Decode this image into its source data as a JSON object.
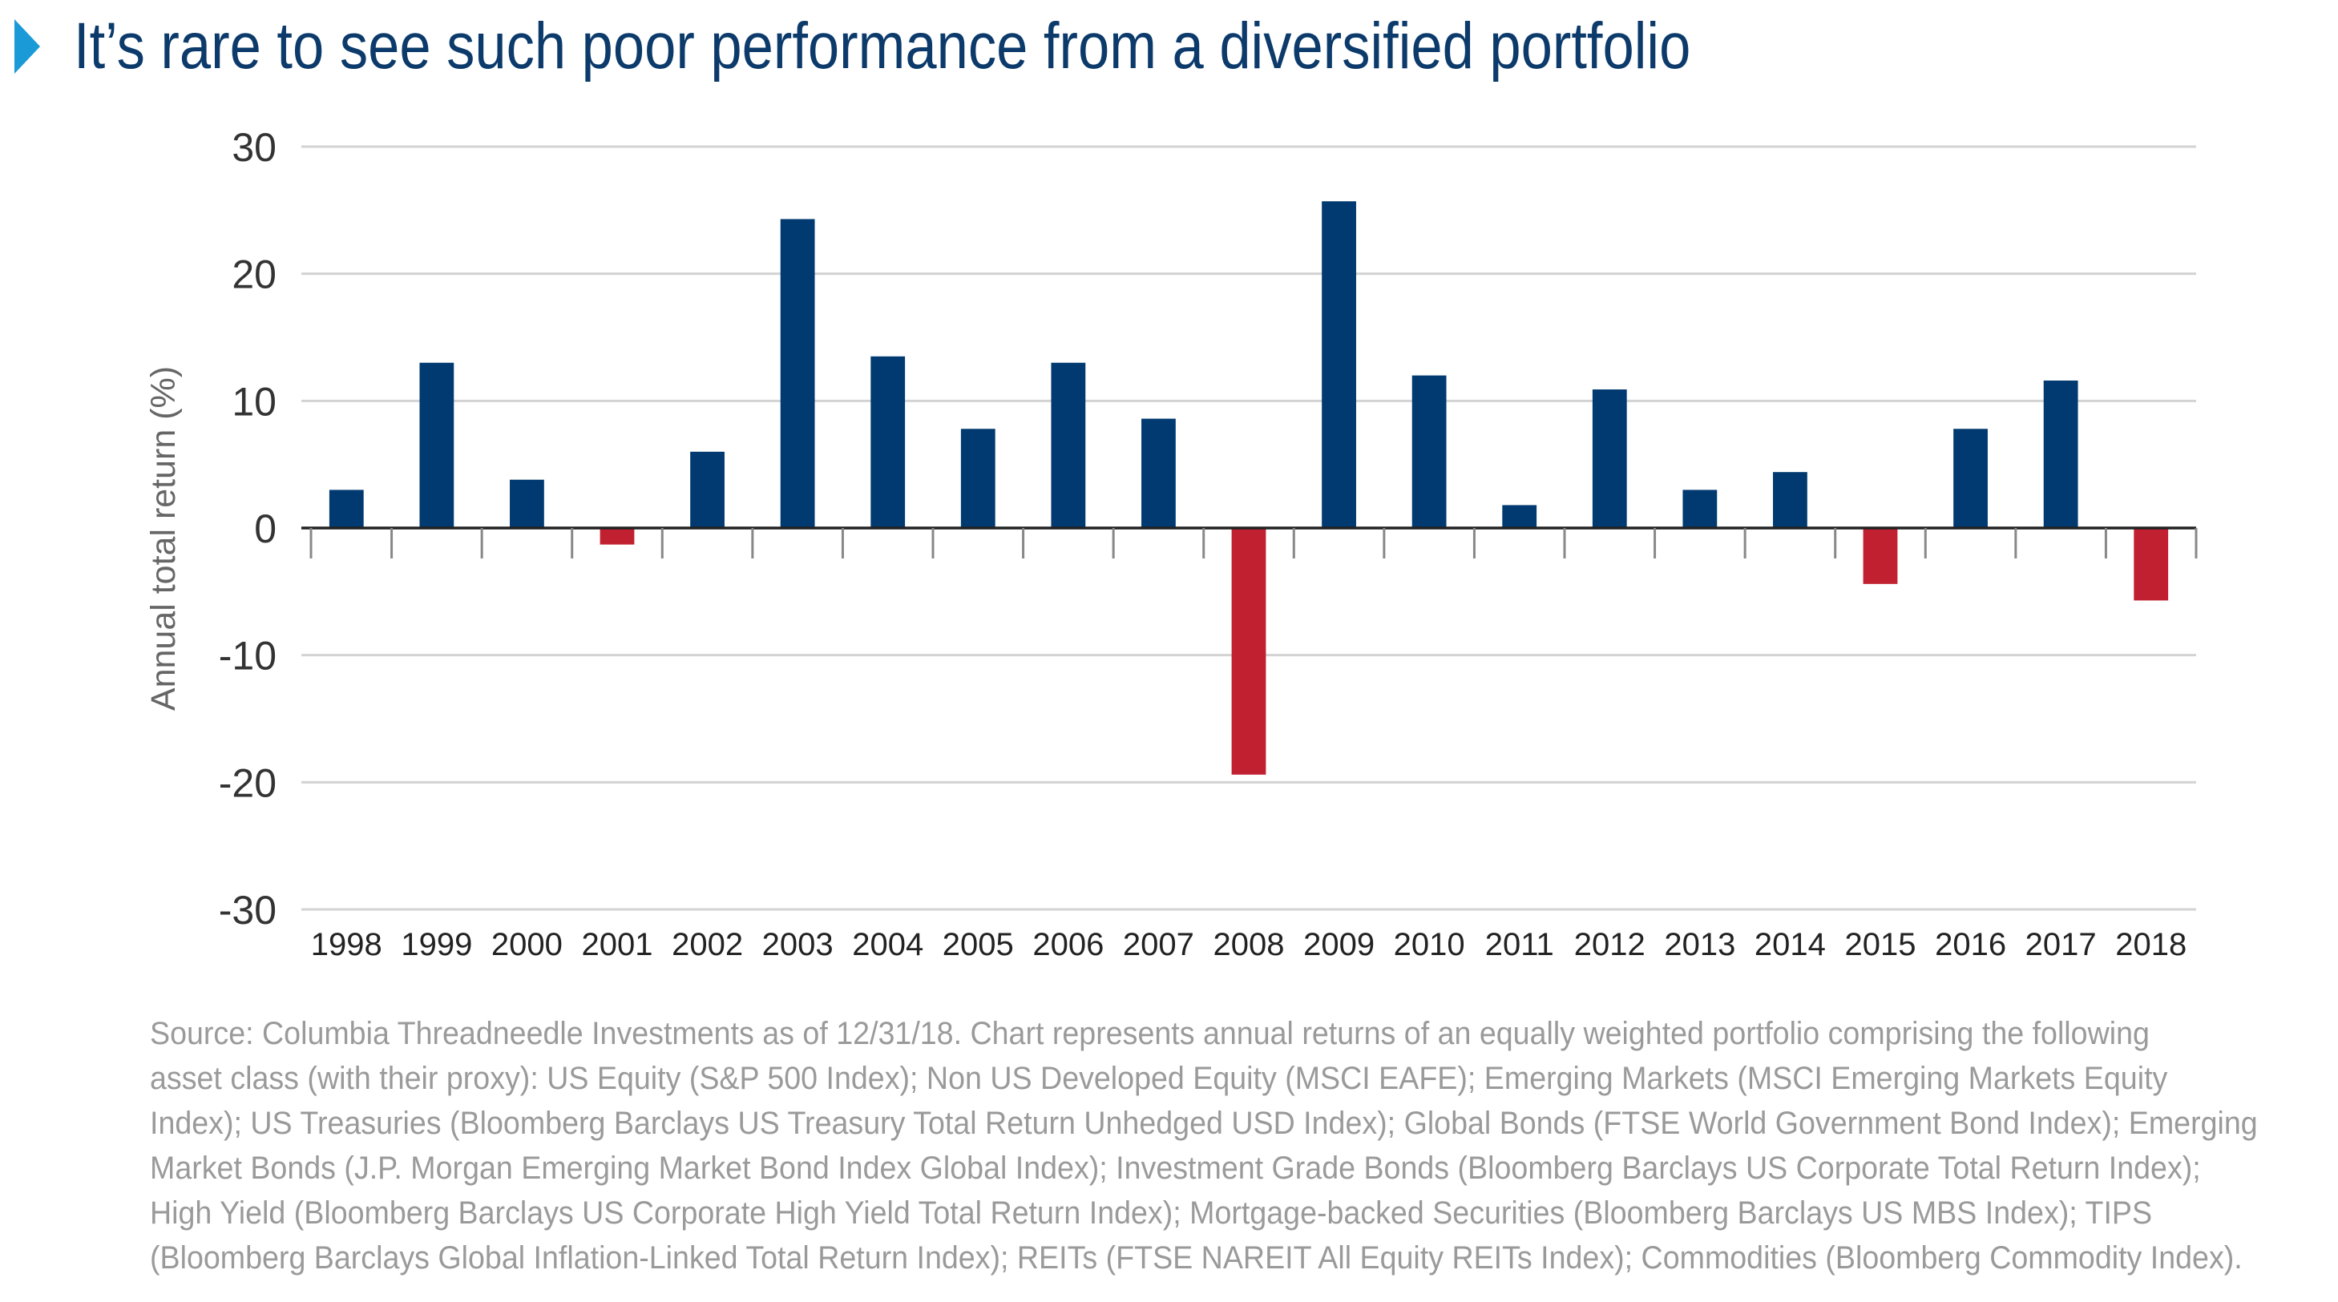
{
  "title": "It’s rare to see such poor performance from a diversified portfolio",
  "icons": {
    "title_marker": "triangle-right-icon"
  },
  "colors": {
    "positive": "#003a70",
    "negative": "#c0202f",
    "title": "#0b3a6b",
    "accent": "#1a9ad6",
    "source": "#9a9a9a"
  },
  "chart_data": {
    "type": "bar",
    "ylabel": "Annual total return (%)",
    "ylim": [
      -30,
      30
    ],
    "yticks": [
      30,
      20,
      10,
      0,
      -10,
      -20,
      -30
    ],
    "grid": true,
    "categories": [
      "1998",
      "1999",
      "2000",
      "2001",
      "2002",
      "2003",
      "2004",
      "2005",
      "2006",
      "2007",
      "2008",
      "2009",
      "2010",
      "2011",
      "2012",
      "2013",
      "2014",
      "2015",
      "2016",
      "2017",
      "2018"
    ],
    "values": [
      3.0,
      13.0,
      3.8,
      -1.3,
      6.0,
      24.3,
      13.5,
      7.8,
      13.0,
      8.6,
      -19.4,
      25.7,
      12.0,
      1.8,
      10.9,
      3.0,
      4.4,
      -4.4,
      7.8,
      11.6,
      -5.7
    ]
  },
  "source_lines": [
    "Source: Columbia Threadneedle Investments as of 12/31/18. Chart represents annual returns of an equally weighted portfolio comprising the following",
    "asset class (with their proxy): US Equity (S&P 500 Index); Non US Developed Equity (MSCI EAFE); Emerging Markets (MSCI Emerging Markets Equity",
    "Index); US Treasuries (Bloomberg Barclays US Treasury Total Return Unhedged USD Index); Global Bonds (FTSE World Government Bond Index); Emerging",
    "Market Bonds (J.P. Morgan Emerging Market Bond Index Global Index); Investment Grade Bonds (Bloomberg Barclays US Corporate Total Return Index);",
    "High Yield (Bloomberg Barclays US Corporate High Yield Total Return Index); Mortgage-backed Securities (Bloomberg Barclays US MBS Index); TIPS",
    "(Bloomberg Barclays Global Inflation-Linked Total Return Index); REITs (FTSE NAREIT All Equity REITs Index); Commodities (Bloomberg Commodity Index)."
  ]
}
